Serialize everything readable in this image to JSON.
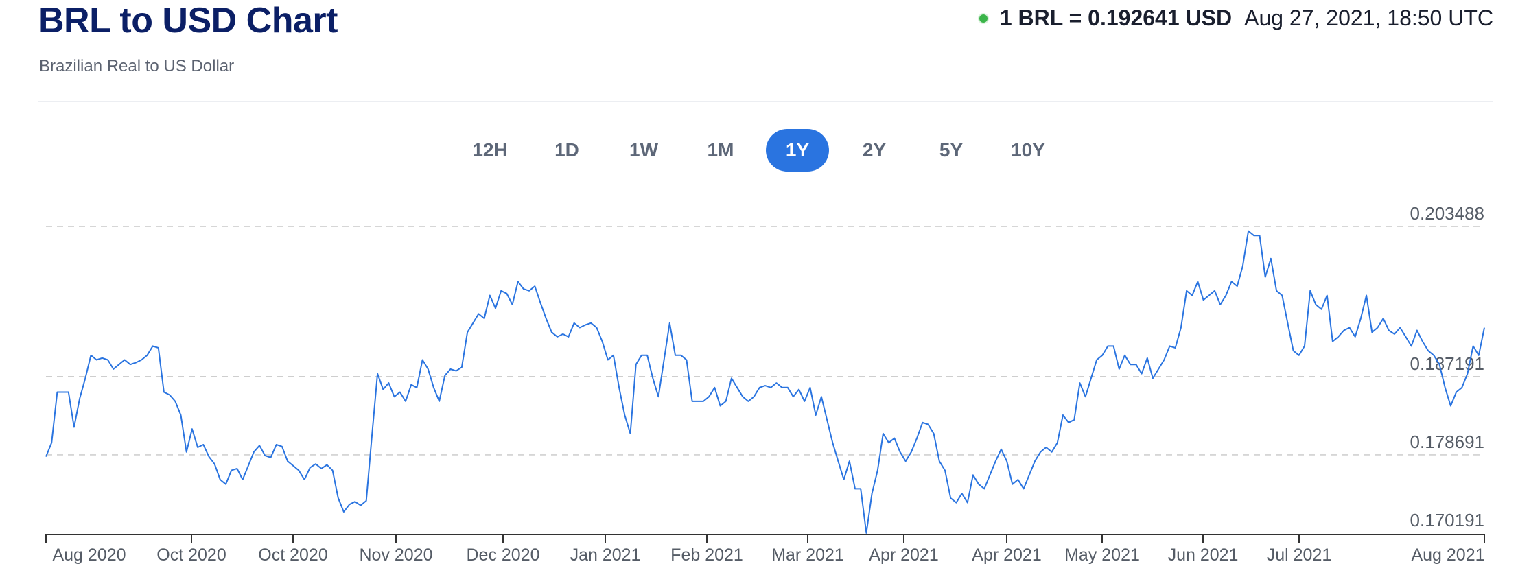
{
  "header": {
    "title": "BRL to USD Chart",
    "subtitle": "Brazilian Real to US Dollar"
  },
  "rate_info": {
    "rate": "1 BRL = 0.192641 USD",
    "timestamp": "Aug 27, 2021, 18:50 UTC",
    "status_color": "#3bb54a"
  },
  "range_tabs": [
    {
      "label": "12H",
      "active": false
    },
    {
      "label": "1D",
      "active": false
    },
    {
      "label": "1W",
      "active": false
    },
    {
      "label": "1M",
      "active": false
    },
    {
      "label": "1Y",
      "active": true
    },
    {
      "label": "2Y",
      "active": false
    },
    {
      "label": "5Y",
      "active": false
    },
    {
      "label": "10Y",
      "active": false
    }
  ],
  "colors": {
    "line": "#2a74e0",
    "accent": "#2a74e0",
    "title": "#0b1f66",
    "grid": "#c8c8c8"
  },
  "chart_data": {
    "type": "line",
    "title": "",
    "xlabel": "",
    "ylabel": "",
    "grid": "horizontal dashed",
    "y_tick_labels": [
      "0.203488",
      "0.187191",
      "0.178691",
      "0.170191"
    ],
    "x_tick_labels": [
      "Aug 2020",
      "Oct 2020",
      "Oct 2020",
      "Nov 2020",
      "Dec 2020",
      "Jan 2021",
      "Feb 2021",
      "Mar 2021",
      "Apr 2021",
      "Apr 2021",
      "May 2021",
      "Jun 2021",
      "Jul 2021",
      "Aug 2021"
    ],
    "ylim": [
      0.170191,
      0.203488
    ],
    "series": [
      {
        "values": [
          0.1785,
          0.18,
          0.1855,
          0.1855,
          0.1855,
          0.1817,
          0.1848,
          0.187,
          0.1895,
          0.189,
          0.1892,
          0.189,
          0.188,
          0.1885,
          0.189,
          0.1885,
          0.1887,
          0.189,
          0.1895,
          0.1905,
          0.1903,
          0.1855,
          0.1852,
          0.1845,
          0.183,
          0.179,
          0.1815,
          0.1795,
          0.1798,
          0.1785,
          0.1777,
          0.176,
          0.1755,
          0.177,
          0.1772,
          0.176,
          0.1775,
          0.179,
          0.1797,
          0.1786,
          0.1784,
          0.1798,
          0.1796,
          0.178,
          0.1775,
          0.177,
          0.176,
          0.1773,
          0.1777,
          0.1772,
          0.1776,
          0.177,
          0.174,
          0.1725,
          0.1733,
          0.1736,
          0.1732,
          0.1737,
          0.1807,
          0.1875,
          0.1858,
          0.1865,
          0.185,
          0.1855,
          0.1845,
          0.1863,
          0.186,
          0.189,
          0.188,
          0.186,
          0.1845,
          0.1873,
          0.188,
          0.1878,
          0.1882,
          0.192,
          0.193,
          0.194,
          0.1935,
          0.196,
          0.1946,
          0.1965,
          0.1962,
          0.195,
          0.1975,
          0.1967,
          0.1965,
          0.197,
          0.1952,
          0.1935,
          0.192,
          0.1915,
          0.1918,
          0.1915,
          0.193,
          0.1925,
          0.1928,
          0.193,
          0.1925,
          0.191,
          0.189,
          0.1895,
          0.186,
          0.183,
          0.181,
          0.1885,
          0.1895,
          0.1895,
          0.187,
          0.185,
          0.189,
          0.193,
          0.1895,
          0.1895,
          0.189,
          0.1845,
          0.1845,
          0.1845,
          0.185,
          0.186,
          0.184,
          0.1845,
          0.187,
          0.186,
          0.185,
          0.1845,
          0.185,
          0.186,
          0.1862,
          0.186,
          0.1865,
          0.186,
          0.186,
          0.185,
          0.1858,
          0.1845,
          0.186,
          0.183,
          0.185,
          0.1825,
          0.18,
          0.178,
          0.176,
          0.178,
          0.175,
          0.175,
          0.1702,
          0.1745,
          0.177,
          0.181,
          0.18,
          0.1805,
          0.179,
          0.178,
          0.179,
          0.1805,
          0.1822,
          0.182,
          0.181,
          0.178,
          0.177,
          0.174,
          0.1735,
          0.1745,
          0.1735,
          0.1765,
          0.1755,
          0.175,
          0.1765,
          0.178,
          0.1793,
          0.178,
          0.1755,
          0.176,
          0.175,
          0.1765,
          0.178,
          0.179,
          0.1795,
          0.179,
          0.18,
          0.183,
          0.1822,
          0.1825,
          0.1865,
          0.185,
          0.187,
          0.189,
          0.1895,
          0.1905,
          0.1905,
          0.188,
          0.1895,
          0.1885,
          0.1885,
          0.1875,
          0.1892,
          0.187,
          0.188,
          0.189,
          0.1905,
          0.1903,
          0.1925,
          0.1965,
          0.196,
          0.1975,
          0.1955,
          0.196,
          0.1965,
          0.195,
          0.196,
          0.1975,
          0.197,
          0.1992,
          0.203,
          0.2025,
          0.2025,
          0.198,
          0.2,
          0.1965,
          0.196,
          0.193,
          0.19,
          0.1895,
          0.1905,
          0.1965,
          0.195,
          0.1945,
          0.196,
          0.191,
          0.1915,
          0.1922,
          0.1925,
          0.1915,
          0.1935,
          0.196,
          0.192,
          0.1925,
          0.1935,
          0.1922,
          0.1918,
          0.1925,
          0.1915,
          0.1905,
          0.1922,
          0.191,
          0.19,
          0.1895,
          0.1885,
          0.186,
          0.184,
          0.1855,
          0.186,
          0.1875,
          0.1905,
          0.1895,
          0.1925
        ]
      }
    ]
  }
}
